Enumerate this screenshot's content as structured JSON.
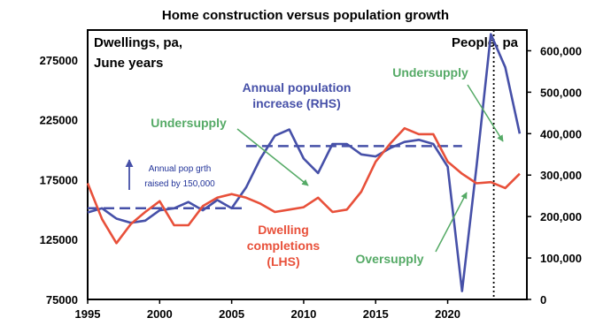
{
  "chart_data": {
    "type": "line",
    "title": "Home construction versus population growth",
    "left_axis": {
      "label_lines": [
        "Dwellings, pa,",
        "June years"
      ],
      "ylim": [
        75000,
        300000
      ],
      "ticks": [
        75000,
        125000,
        175000,
        225000,
        275000
      ],
      "tick_labels": [
        "75000",
        "125000",
        "175000",
        "225000",
        "275000"
      ]
    },
    "right_axis": {
      "label": "People, pa",
      "ylim": [
        0,
        650000
      ],
      "ticks": [
        0,
        100000,
        200000,
        300000,
        400000,
        500000,
        600000
      ],
      "tick_labels": [
        "0",
        "100,000",
        "200,000",
        "300,000",
        "400,000",
        "500,000",
        "600,000"
      ]
    },
    "x_axis": {
      "xlim": [
        1995,
        2025.5
      ],
      "ticks": [
        1995,
        2000,
        2005,
        2010,
        2015,
        2020
      ],
      "tick_labels": [
        "1995",
        "2000",
        "2005",
        "2010",
        "2015",
        "2020"
      ]
    },
    "series": [
      {
        "name_lines": [
          "Annual population",
          "increase (RHS)"
        ],
        "axis": "right",
        "color": "#4650a8",
        "x": [
          1995,
          1996,
          1997,
          1998,
          1999,
          2000,
          2001,
          2002,
          2003,
          2004,
          2005,
          2006,
          2007,
          2008,
          2009,
          2010,
          2011,
          2012,
          2013,
          2014,
          2015,
          2016,
          2017,
          2018,
          2019,
          2020,
          2021,
          2022,
          2023,
          2024,
          2025
        ],
        "values": [
          210000,
          220000,
          195000,
          185000,
          190000,
          215000,
          220000,
          235000,
          215000,
          240000,
          220000,
          270000,
          340000,
          395000,
          410000,
          340000,
          305000,
          375000,
          375000,
          350000,
          345000,
          365000,
          380000,
          385000,
          375000,
          320000,
          20000,
          320000,
          640000,
          560000,
          400000
        ]
      },
      {
        "name_lines": [
          "Dwelling",
          "completions",
          "(LHS)"
        ],
        "axis": "left",
        "color": "#e8503a",
        "x": [
          1995,
          1996,
          1997,
          1998,
          1999,
          2000,
          2001,
          2002,
          2003,
          2004,
          2005,
          2006,
          2007,
          2008,
          2009,
          2010,
          2011,
          2012,
          2013,
          2014,
          2015,
          2016,
          2017,
          2018,
          2019,
          2020,
          2021,
          2022,
          2023,
          2024,
          2025
        ],
        "values": [
          172000,
          142000,
          122000,
          138000,
          148000,
          157000,
          137000,
          137000,
          153000,
          160000,
          163000,
          160000,
          155000,
          148000,
          150000,
          152000,
          160000,
          148000,
          150000,
          165000,
          190000,
          205000,
          218000,
          213000,
          213000,
          190000,
          180000,
          172000,
          173000,
          168000,
          180000
        ]
      }
    ],
    "reference_lines": [
      {
        "axis": "right",
        "x": [
          1995,
          2006
        ],
        "value": 220000,
        "style": "dashed",
        "color": "#4650a8"
      },
      {
        "axis": "right",
        "x": [
          2006,
          2021
        ],
        "value": 370000,
        "style": "dashed",
        "color": "#4650a8"
      },
      {
        "axis": "x",
        "value": 2023.2,
        "style": "dotted",
        "color": "#000000"
      }
    ],
    "annotations": {
      "pop_growth": [
        "Annual pop grth",
        "raised by 150,000"
      ],
      "undersupply_1": "Undersupply",
      "undersupply_2": "Undersupply",
      "oversupply": "Oversupply"
    },
    "annotation_color": "#55aa66",
    "grid": false,
    "legend": "none"
  }
}
